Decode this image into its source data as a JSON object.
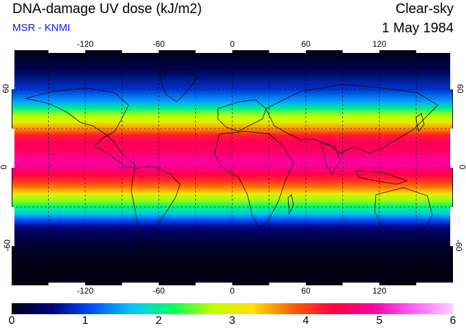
{
  "header": {
    "title": "DNA-damage UV dose (kJ/m2)",
    "source": "MSR - KNMI",
    "condition": "Clear-sky",
    "date": "1 May 1984"
  },
  "axes": {
    "lon_labels": [
      "-120",
      "-60",
      "0",
      "60",
      "120"
    ],
    "lon_values": [
      -120,
      -60,
      0,
      60,
      120
    ],
    "lat_labels": [
      "60",
      "0",
      "-60"
    ],
    "lat_values": [
      60,
      0,
      -60
    ],
    "grid_step_deg": 30,
    "lon_range": [
      -180,
      180
    ],
    "lat_range": [
      -90,
      90
    ]
  },
  "colorbar": {
    "labels": [
      "0",
      "1",
      "2",
      "3",
      "4",
      "5",
      "6"
    ],
    "min": 0,
    "max": 6,
    "colors": [
      "#000010",
      "#000080",
      "#0050ff",
      "#00c8ff",
      "#00ff60",
      "#c0ff00",
      "#ffe000",
      "#ff6000",
      "#ff0040",
      "#ff00a0",
      "#ff60ff",
      "#ffd0ff"
    ]
  },
  "uv_profile": {
    "lat": [
      90,
      75,
      60,
      50,
      45,
      40,
      35,
      30,
      25,
      20,
      15,
      10,
      5,
      0,
      -5,
      -10,
      -15,
      -20,
      -25,
      -30,
      -35,
      -40,
      -45,
      -50,
      -60,
      -70,
      -90
    ],
    "dose": [
      0.05,
      0.3,
      0.9,
      1.5,
      2.1,
      2.7,
      3.0,
      3.6,
      4.2,
      4.5,
      4.5,
      4.7,
      4.9,
      4.8,
      4.4,
      4.1,
      3.7,
      3.1,
      2.6,
      2.1,
      1.7,
      1.1,
      0.6,
      0.35,
      0.15,
      0.05,
      0.0
    ]
  }
}
